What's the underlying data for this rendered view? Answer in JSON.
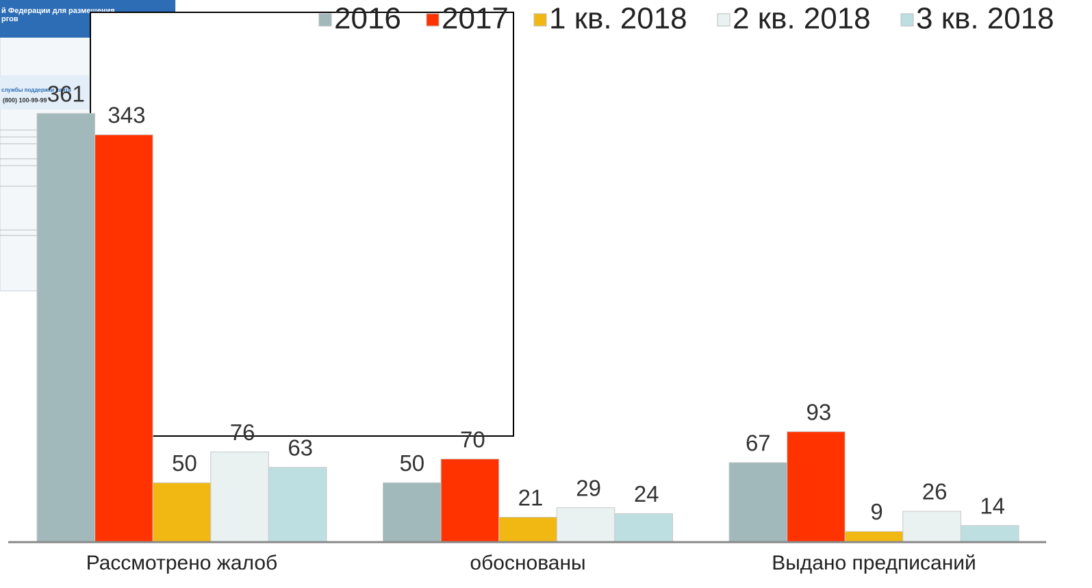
{
  "chart_data": {
    "type": "bar",
    "categories": [
      "Рассмотрено жалоб",
      "обоснованы",
      "Выдано предписаний"
    ],
    "series": [
      {
        "name": "2016",
        "color": "#a2b9bc",
        "values": [
          361,
          50,
          67
        ]
      },
      {
        "name": "2017",
        "color": "#ff3300",
        "values": [
          343,
          70,
          93
        ]
      },
      {
        "name": "1 кв. 2018",
        "color": "#f1b814",
        "values": [
          50,
          21,
          9
        ]
      },
      {
        "name": "2 кв. 2018",
        "color": "#e9f1f1",
        "values": [
          76,
          29,
          26
        ]
      },
      {
        "name": "3 кв. 2018",
        "color": "#bedfe2",
        "values": [
          63,
          24,
          14
        ]
      }
    ],
    "legend": "top-right"
  },
  "screenshot_fragment": {
    "lines": [
      "й Федерации для размещения",
      "ргов",
      "службы поддержки сайта",
      "(800) 100-99-99"
    ]
  }
}
